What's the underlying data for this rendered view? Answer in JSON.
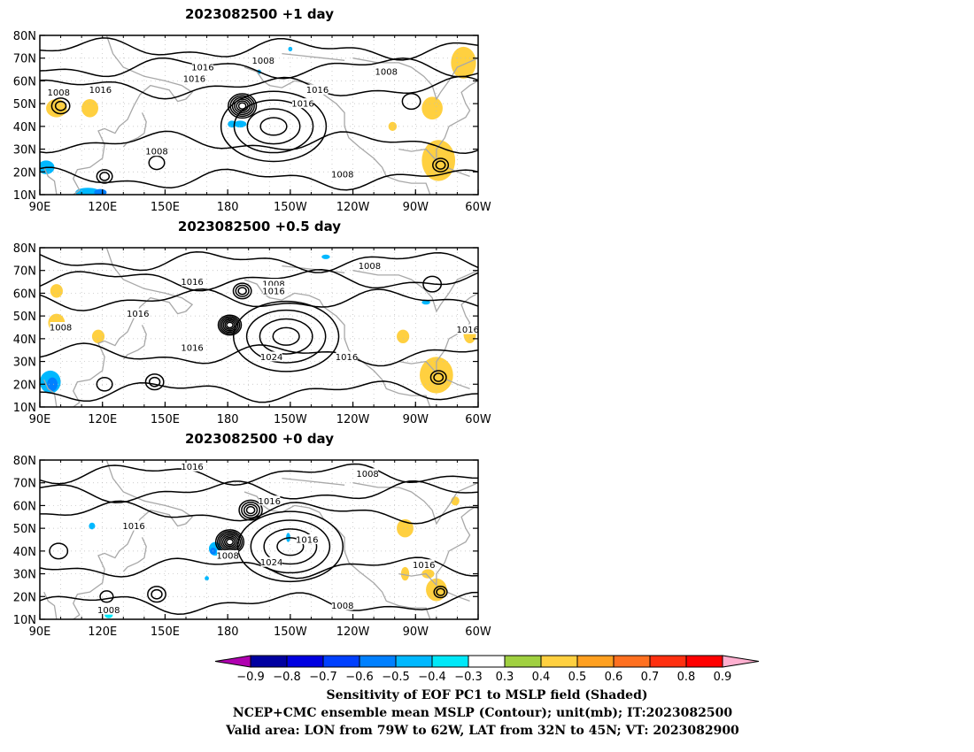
{
  "chart_data": [
    {
      "type": "heatmap",
      "title": "2023082500  +1 day",
      "lon_range": [
        90,
        300
      ],
      "lat_range": [
        10,
        80
      ],
      "x_ticks": [
        "90E",
        "120E",
        "150E",
        "180",
        "150W",
        "120W",
        "90W",
        "60W"
      ],
      "y_ticks": [
        "10N",
        "20N",
        "30N",
        "40N",
        "50N",
        "60N",
        "70N",
        "80N"
      ],
      "contour_labels": [
        {
          "text": "1016",
          "lon": 168,
          "lat": 66
        },
        {
          "text": "1008",
          "lon": 197,
          "lat": 69
        },
        {
          "text": "1016",
          "lon": 164,
          "lat": 61
        },
        {
          "text": "1008",
          "lon": 256,
          "lat": 64
        },
        {
          "text": "1008",
          "lon": 99,
          "lat": 55
        },
        {
          "text": "1016",
          "lon": 119,
          "lat": 56
        },
        {
          "text": "1016",
          "lon": 223,
          "lat": 56
        },
        {
          "text": "1016",
          "lon": 216,
          "lat": 50
        },
        {
          "text": "1008",
          "lon": 146,
          "lat": 29
        },
        {
          "text": "1008",
          "lon": 235,
          "lat": 19
        }
      ],
      "lows": [
        {
          "lon": 187,
          "lat": 49,
          "rings": 6,
          "r": 5
        },
        {
          "lon": 100,
          "lat": 49,
          "rings": 2,
          "r": 3
        },
        {
          "lon": 282,
          "lat": 23,
          "rings": 2,
          "r": 2.5
        },
        {
          "lon": 121,
          "lat": 18,
          "rings": 2,
          "r": 2.5
        },
        {
          "lon": 146,
          "lat": 24,
          "rings": 1,
          "r": 2.5
        },
        {
          "lon": 268,
          "lat": 51,
          "rings": 1,
          "r": 3
        }
      ],
      "highs": [
        {
          "lon": 202,
          "lat": 40,
          "rings": 4,
          "r": 7
        }
      ],
      "shaded": [
        {
          "lon": 282,
          "lat": 24,
          "value": 0.6,
          "rx": 3,
          "ry": 3
        },
        {
          "lon": 283,
          "lat": 24,
          "value": 0.5,
          "rx": 5,
          "ry": 5
        },
        {
          "lon": 281,
          "lat": 25,
          "value": 0.4,
          "rx": 8,
          "ry": 9
        },
        {
          "lon": 293,
          "lat": 70,
          "value": 0.5,
          "rx": 3,
          "ry": 3
        },
        {
          "lon": 293,
          "lat": 68,
          "value": 0.4,
          "rx": 6,
          "ry": 7
        },
        {
          "lon": 98,
          "lat": 48,
          "value": 0.4,
          "rx": 5,
          "ry": 4
        },
        {
          "lon": 114,
          "lat": 48,
          "value": 0.4,
          "rx": 4,
          "ry": 4
        },
        {
          "lon": 278,
          "lat": 48,
          "value": 0.4,
          "rx": 5,
          "ry": 5
        },
        {
          "lon": 259,
          "lat": 40,
          "value": 0.4,
          "rx": 2,
          "ry": 2
        },
        {
          "lon": 186,
          "lat": 41,
          "value": -0.4,
          "rx": 3,
          "ry": 1.5
        },
        {
          "lon": 182,
          "lat": 41,
          "value": -0.4,
          "rx": 2,
          "ry": 1.5
        },
        {
          "lon": 93,
          "lat": 22,
          "value": -0.4,
          "rx": 4,
          "ry": 3
        },
        {
          "lon": 113,
          "lat": 11,
          "value": -0.4,
          "rx": 6,
          "ry": 2
        },
        {
          "lon": 119,
          "lat": 11,
          "value": -0.5,
          "rx": 3,
          "ry": 1.5
        },
        {
          "lon": 195,
          "lat": 64,
          "value": -0.4,
          "rx": 1,
          "ry": 1
        },
        {
          "lon": 210,
          "lat": 74,
          "value": -0.4,
          "rx": 1,
          "ry": 1
        }
      ]
    },
    {
      "type": "heatmap",
      "title": "2023082500  +0.5 day",
      "lon_range": [
        90,
        300
      ],
      "lat_range": [
        10,
        80
      ],
      "x_ticks": [
        "90E",
        "120E",
        "150E",
        "180",
        "150W",
        "120W",
        "90W",
        "60W"
      ],
      "y_ticks": [
        "10N",
        "20N",
        "30N",
        "40N",
        "50N",
        "60N",
        "70N",
        "80N"
      ],
      "contour_labels": [
        {
          "text": "1016",
          "lon": 163,
          "lat": 65
        },
        {
          "text": "1008",
          "lon": 202,
          "lat": 64
        },
        {
          "text": "1016",
          "lon": 202,
          "lat": 61
        },
        {
          "text": "1008",
          "lon": 248,
          "lat": 72
        },
        {
          "text": "1016",
          "lon": 137,
          "lat": 51
        },
        {
          "text": "1008",
          "lon": 100,
          "lat": 45
        },
        {
          "text": "1016",
          "lon": 163,
          "lat": 36
        },
        {
          "text": "1024",
          "lon": 201,
          "lat": 32
        },
        {
          "text": "1016",
          "lon": 237,
          "lat": 32
        },
        {
          "text": "1016",
          "lon": 295,
          "lat": 44
        }
      ],
      "lows": [
        {
          "lon": 181,
          "lat": 46,
          "rings": 6,
          "r": 4
        },
        {
          "lon": 187,
          "lat": 61,
          "rings": 3,
          "r": 3
        },
        {
          "lon": 281,
          "lat": 23,
          "rings": 2,
          "r": 2.5
        },
        {
          "lon": 121,
          "lat": 20,
          "rings": 1,
          "r": 2.5
        },
        {
          "lon": 145,
          "lat": 21,
          "rings": 2,
          "r": 3
        },
        {
          "lon": 278,
          "lat": 64,
          "rings": 1,
          "r": 3
        }
      ],
      "highs": [
        {
          "lon": 208,
          "lat": 41,
          "rings": 4,
          "r": 7
        }
      ],
      "shaded": [
        {
          "lon": 282,
          "lat": 23,
          "value": 0.6,
          "rx": 3,
          "ry": 3
        },
        {
          "lon": 281,
          "lat": 23,
          "value": 0.5,
          "rx": 5,
          "ry": 5
        },
        {
          "lon": 280,
          "lat": 24,
          "value": 0.4,
          "rx": 8,
          "ry": 8
        },
        {
          "lon": 98,
          "lat": 47,
          "value": 0.4,
          "rx": 4,
          "ry": 4
        },
        {
          "lon": 98,
          "lat": 61,
          "value": 0.4,
          "rx": 3,
          "ry": 3
        },
        {
          "lon": 296,
          "lat": 42,
          "value": 0.4,
          "rx": 3,
          "ry": 4
        },
        {
          "lon": 264,
          "lat": 41,
          "value": 0.4,
          "rx": 3,
          "ry": 3
        },
        {
          "lon": 118,
          "lat": 41,
          "value": 0.4,
          "rx": 3,
          "ry": 3
        },
        {
          "lon": 95,
          "lat": 21,
          "value": -0.4,
          "rx": 5,
          "ry": 5
        },
        {
          "lon": 96,
          "lat": 20,
          "value": -0.5,
          "rx": 2.5,
          "ry": 3
        },
        {
          "lon": 227,
          "lat": 76,
          "value": -0.4,
          "rx": 2,
          "ry": 1
        },
        {
          "lon": 275,
          "lat": 56,
          "value": -0.4,
          "rx": 2,
          "ry": 1
        }
      ]
    },
    {
      "type": "heatmap",
      "title": "2023082500  +0 day",
      "lon_range": [
        90,
        300
      ],
      "lat_range": [
        10,
        80
      ],
      "x_ticks": [
        "90E",
        "120E",
        "150E",
        "180",
        "150W",
        "120W",
        "90W",
        "60W"
      ],
      "y_ticks": [
        "10N",
        "20N",
        "30N",
        "40N",
        "50N",
        "60N",
        "70N",
        "80N"
      ],
      "contour_labels": [
        {
          "text": "1016",
          "lon": 163,
          "lat": 77
        },
        {
          "text": "1008",
          "lon": 247,
          "lat": 74
        },
        {
          "text": "1016",
          "lon": 200,
          "lat": 62
        },
        {
          "text": "1016",
          "lon": 135,
          "lat": 51
        },
        {
          "text": "1016",
          "lon": 218,
          "lat": 45
        },
        {
          "text": "1008",
          "lon": 180,
          "lat": 38
        },
        {
          "text": "1024",
          "lon": 201,
          "lat": 35
        },
        {
          "text": "1016",
          "lon": 274,
          "lat": 34
        },
        {
          "text": "1008",
          "lon": 123,
          "lat": 14
        },
        {
          "text": "1008",
          "lon": 235,
          "lat": 16
        }
      ],
      "lows": [
        {
          "lon": 181,
          "lat": 44,
          "rings": 7,
          "r": 5
        },
        {
          "lon": 191,
          "lat": 58,
          "rings": 4,
          "r": 4
        },
        {
          "lon": 282,
          "lat": 22,
          "rings": 2,
          "r": 2
        },
        {
          "lon": 146,
          "lat": 21,
          "rings": 2,
          "r": 3
        },
        {
          "lon": 99,
          "lat": 40,
          "rings": 1,
          "r": 3
        },
        {
          "lon": 122,
          "lat": 20,
          "rings": 1,
          "r": 2
        }
      ],
      "highs": [
        {
          "lon": 210,
          "lat": 42,
          "rings": 4,
          "r": 7
        }
      ],
      "shaded": [
        {
          "lon": 281,
          "lat": 22,
          "value": 0.5,
          "rx": 2,
          "ry": 2
        },
        {
          "lon": 280,
          "lat": 23,
          "value": 0.4,
          "rx": 5,
          "ry": 5
        },
        {
          "lon": 265,
          "lat": 50,
          "value": 0.4,
          "rx": 4,
          "ry": 4
        },
        {
          "lon": 265,
          "lat": 30,
          "value": 0.4,
          "rx": 2,
          "ry": 3
        },
        {
          "lon": 276,
          "lat": 30,
          "value": 0.4,
          "rx": 3,
          "ry": 2
        },
        {
          "lon": 289,
          "lat": 62,
          "value": 0.4,
          "rx": 2,
          "ry": 2
        },
        {
          "lon": 174,
          "lat": 41,
          "value": -0.4,
          "rx": 3,
          "ry": 3
        },
        {
          "lon": 173,
          "lat": 40,
          "value": -0.5,
          "rx": 1.5,
          "ry": 1.5
        },
        {
          "lon": 115,
          "lat": 51,
          "value": -0.4,
          "rx": 1.5,
          "ry": 1.5
        },
        {
          "lon": 123,
          "lat": 12,
          "value": -0.3,
          "rx": 2,
          "ry": 1.5
        },
        {
          "lon": 209,
          "lat": 46,
          "value": -0.4,
          "rx": 1,
          "ry": 2
        },
        {
          "lon": 170,
          "lat": 28,
          "value": -0.4,
          "rx": 1,
          "ry": 1
        }
      ]
    }
  ],
  "colorbar": {
    "labels": [
      "-0.9",
      "-0.8",
      "-0.7",
      "-0.6",
      "-0.5",
      "-0.4",
      "-0.3",
      "0.3",
      "0.4",
      "0.5",
      "0.6",
      "0.7",
      "0.8",
      "0.9"
    ],
    "colors": [
      "#b000b0",
      "#0000a0",
      "#0000e0",
      "#0040ff",
      "#0080ff",
      "#00b8ff",
      "#00e8f8",
      "#ffffff",
      "#a0d040",
      "#ffd040",
      "#ffa020",
      "#ff7020",
      "#ff3010",
      "#ff0000",
      "#ffb0d0"
    ]
  },
  "captions": [
    "Sensitivity of EOF PC1 to MSLP field (Shaded)",
    "NCEP+CMC ensemble mean MSLP (Contour); unit(mb); IT:2023082500",
    "Valid area: LON from 79W to 62W, LAT from 32N to 45N; VT: 2023082900"
  ]
}
